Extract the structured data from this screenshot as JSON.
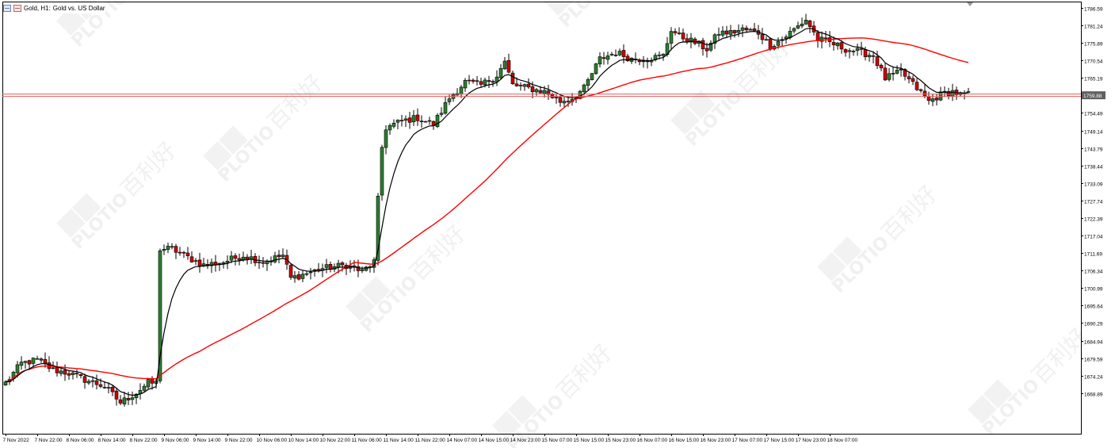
{
  "header": {
    "symbol": "Gold, H1:",
    "description": "Gold vs. US Dollar",
    "chart_icon": "candles-icon",
    "period_icon": "period-icon"
  },
  "current_price_label": "1759.88",
  "watermark": {
    "logo": "PLOTIO",
    "cn_text": "百利好"
  },
  "colors": {
    "bull": "#2e7d32",
    "bear": "#d10000",
    "wick": "#000000",
    "ma_fast": "#000000",
    "ma_slow": "#ff0000",
    "price_line": "#e06060",
    "frame": "#000000"
  },
  "chart_data": {
    "type": "candlestick",
    "instrument": "Gold vs. US Dollar",
    "timeframe": "H1",
    "ylim": [
      1656.5,
      1788.5
    ],
    "y_ticks": [
      1786.59,
      1781.24,
      1775.89,
      1770.54,
      1765.19,
      1754.49,
      1749.14,
      1743.79,
      1738.44,
      1733.09,
      1727.74,
      1722.39,
      1717.04,
      1711.69,
      1706.34,
      1700.99,
      1695.64,
      1690.29,
      1684.94,
      1679.59,
      1674.24,
      1668.89
    ],
    "y_tick_labels": [
      "1786.59",
      "1781.24",
      "1775.89",
      "1770.54",
      "1765.19",
      "1754.49",
      "1749.14",
      "1743.79",
      "1738.44",
      "1733.09",
      "1727.74",
      "1722.39",
      "1717.04",
      "1711.69",
      "1706.34",
      "1700.99",
      "1695.64",
      "1690.29",
      "1684.94",
      "1679.59",
      "1674.24",
      "1668.89"
    ],
    "x_labels": [
      "7 Nov 2022",
      "7 Nov 22:00",
      "8 Nov 06:00",
      "8 Nov 14:00",
      "8 Nov 22:00",
      "9 Nov 06:00",
      "9 Nov 14:00",
      "9 Nov 22:00",
      "10 Nov 06:00",
      "10 Nov 14:00",
      "10 Nov 22:00",
      "11 Nov 06:00",
      "11 Nov 14:00",
      "11 Nov 22:00",
      "14 Nov 07:00",
      "14 Nov 15:00",
      "14 Nov 23:00",
      "15 Nov 07:00",
      "15 Nov 15:00",
      "15 Nov 23:00",
      "16 Nov 07:00",
      "16 Nov 15:00",
      "16 Nov 23:00",
      "17 Nov 07:00",
      "17 Nov 15:00",
      "17 Nov 23:00",
      "18 Nov 07:00"
    ],
    "bars_per_label": 8,
    "current_price": 1759.88,
    "close_anchors": [
      [
        0,
        1672
      ],
      [
        4,
        1678
      ],
      [
        8,
        1679
      ],
      [
        12,
        1676
      ],
      [
        16,
        1675
      ],
      [
        20,
        1673
      ],
      [
        25,
        1671
      ],
      [
        29,
        1666
      ],
      [
        33,
        1669
      ],
      [
        36,
        1672
      ],
      [
        38,
        1672
      ],
      [
        39,
        1713
      ],
      [
        42,
        1713
      ],
      [
        45,
        1711
      ],
      [
        50,
        1708
      ],
      [
        55,
        1709
      ],
      [
        60,
        1711
      ],
      [
        65,
        1709
      ],
      [
        70,
        1711
      ],
      [
        72,
        1704
      ],
      [
        80,
        1707
      ],
      [
        86,
        1708
      ],
      [
        90,
        1706
      ],
      [
        93,
        1709
      ],
      [
        94,
        1728
      ],
      [
        95,
        1744
      ],
      [
        96,
        1750
      ],
      [
        100,
        1752
      ],
      [
        104,
        1753
      ],
      [
        108,
        1751
      ],
      [
        112,
        1759
      ],
      [
        116,
        1764
      ],
      [
        120,
        1763
      ],
      [
        124,
        1766
      ],
      [
        126,
        1770
      ],
      [
        128,
        1763
      ],
      [
        132,
        1762
      ],
      [
        136,
        1761
      ],
      [
        140,
        1758
      ],
      [
        143,
        1759
      ],
      [
        146,
        1762
      ],
      [
        150,
        1771
      ],
      [
        154,
        1773
      ],
      [
        158,
        1771
      ],
      [
        162,
        1771
      ],
      [
        166,
        1772
      ],
      [
        168,
        1780
      ],
      [
        170,
        1778
      ],
      [
        174,
        1776
      ],
      [
        177,
        1774
      ],
      [
        180,
        1779
      ],
      [
        183,
        1779
      ],
      [
        186,
        1780
      ],
      [
        190,
        1779
      ],
      [
        193,
        1775
      ],
      [
        196,
        1777
      ],
      [
        199,
        1780
      ],
      [
        202,
        1783
      ],
      [
        205,
        1777
      ],
      [
        208,
        1776
      ],
      [
        212,
        1774
      ],
      [
        216,
        1773
      ],
      [
        219,
        1772
      ],
      [
        222,
        1765
      ],
      [
        226,
        1767
      ],
      [
        230,
        1762
      ],
      [
        233,
        1758
      ],
      [
        236,
        1760
      ],
      [
        239,
        1761
      ],
      [
        241,
        1760
      ],
      [
        243,
        1760
      ]
    ],
    "moving_averages": [
      {
        "period": "fast",
        "color": "#000000"
      },
      {
        "period": "slow",
        "color": "#ff0000"
      }
    ]
  }
}
